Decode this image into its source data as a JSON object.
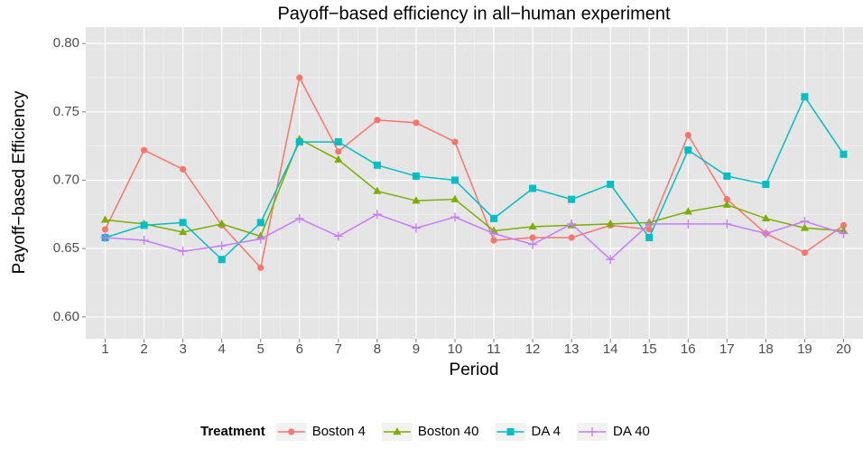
{
  "chart_data": {
    "type": "line",
    "title": "Payoff−based efficiency in all−human experiment",
    "x_label": "Period",
    "y_label": "Payoff−based Efficiency",
    "x": [
      1,
      2,
      3,
      4,
      5,
      6,
      7,
      8,
      9,
      10,
      11,
      12,
      13,
      14,
      15,
      16,
      17,
      18,
      19,
      20
    ],
    "xlim": [
      0.5,
      20.5
    ],
    "xticks": [
      1,
      2,
      3,
      4,
      5,
      6,
      7,
      8,
      9,
      10,
      11,
      12,
      13,
      14,
      15,
      16,
      17,
      18,
      19,
      20
    ],
    "ylim": [
      0.584,
      0.812
    ],
    "yticks": [
      {
        "value": 0.6,
        "label": "0.60"
      },
      {
        "value": 0.65,
        "label": "0.65"
      },
      {
        "value": 0.7,
        "label": "0.70"
      },
      {
        "value": 0.75,
        "label": "0.75"
      },
      {
        "value": 0.8,
        "label": "0.80"
      }
    ],
    "grid": true,
    "legend_position": "bottom",
    "legend_title": "Treatment",
    "series": [
      {
        "name": "Boston 4",
        "color": "#F8766D",
        "marker": "circle",
        "values": [
          0.664,
          0.722,
          0.708,
          0.667,
          0.636,
          0.775,
          0.721,
          0.744,
          0.742,
          0.728,
          0.656,
          0.658,
          0.658,
          0.667,
          0.664,
          0.733,
          0.686,
          0.661,
          0.647,
          0.667
        ]
      },
      {
        "name": "Boston 40",
        "color": "#7CAE00",
        "marker": "triangle",
        "values": [
          0.671,
          0.668,
          0.662,
          0.668,
          0.659,
          0.73,
          0.715,
          0.692,
          0.685,
          0.686,
          0.663,
          0.666,
          0.667,
          0.668,
          0.669,
          0.677,
          0.682,
          0.672,
          0.665,
          0.663
        ]
      },
      {
        "name": "DA 4",
        "color": "#00BFC4",
        "marker": "square",
        "values": [
          0.658,
          0.667,
          0.669,
          0.642,
          0.669,
          0.728,
          0.728,
          0.711,
          0.703,
          0.7,
          0.672,
          0.694,
          0.686,
          0.697,
          0.658,
          0.722,
          0.703,
          0.697,
          0.761,
          0.719
        ]
      },
      {
        "name": "DA 40",
        "color": "#C77CFF",
        "marker": "plus",
        "values": [
          0.658,
          0.656,
          0.648,
          0.652,
          0.657,
          0.672,
          0.659,
          0.675,
          0.665,
          0.673,
          0.661,
          0.653,
          0.668,
          0.642,
          0.668,
          0.668,
          0.668,
          0.661,
          0.67,
          0.661
        ]
      }
    ]
  }
}
